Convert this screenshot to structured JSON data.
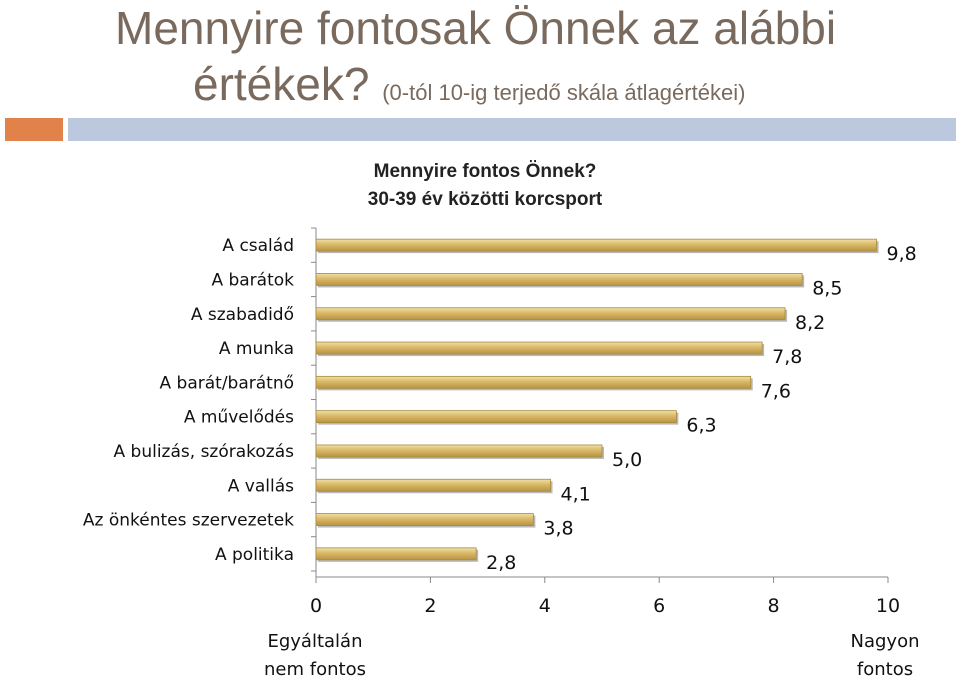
{
  "header": {
    "title_line1": "Mennyire fontosak Önnek az alábbi",
    "title_line2": "értékek?",
    "title_subtitle": "(0-tól 10-ig terjedő skála átlagértékei)"
  },
  "colors": {
    "title": "#7a6a5e",
    "accent_orange": "#e0824a",
    "accent_blue": "#bcc8de",
    "bar_fill": "#d2b05c",
    "bar_highlight": "#efe0a8",
    "bar_shadow": "#8a8a8a"
  },
  "bottom_labels": {
    "left": "Egyáltalán nem fontos",
    "right": "Nagyon fontos"
  },
  "chart_data": {
    "type": "bar",
    "orientation": "horizontal",
    "title": "Mennyire fontos Önnek?",
    "subtitle": "30-39 év közötti korcsport",
    "categories": [
      "A család",
      "A barátok",
      "A szabadidő",
      "A munka",
      "A barát/barátnő",
      "A művelődés",
      "A bulizás, szórakozás",
      "A vallás",
      "Az önkéntes szervezetek",
      "A politika"
    ],
    "values": [
      9.8,
      8.5,
      8.2,
      7.8,
      7.6,
      6.3,
      5.0,
      4.1,
      3.8,
      2.8
    ],
    "value_labels": [
      "9,8",
      "8,5",
      "8,2",
      "7,8",
      "7,6",
      "6,3",
      "5,0",
      "4,1",
      "3,8",
      "2,8"
    ],
    "xlim": [
      0,
      10
    ],
    "xticks": [
      "0",
      "2",
      "4",
      "6",
      "8",
      "10"
    ],
    "grid": false,
    "legend": "none"
  }
}
